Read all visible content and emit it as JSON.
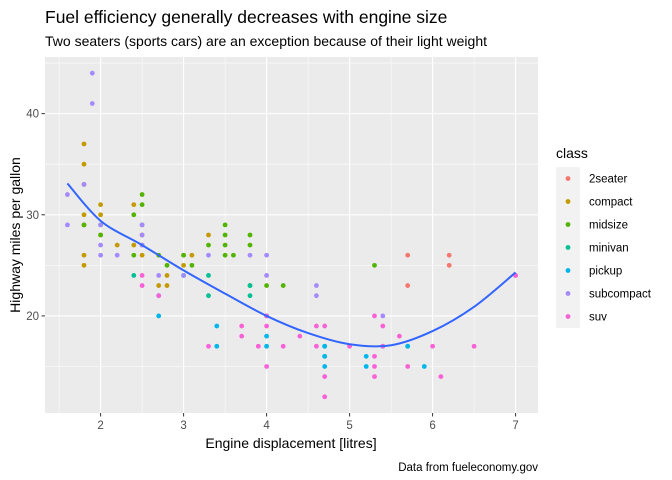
{
  "chart_data": {
    "type": "scatter",
    "title": "Fuel efficiency generally decreases with engine size",
    "subtitle": "Two seaters (sports cars) are an exception because of their light weight",
    "caption": "Data from fueleconomy.gov",
    "xlabel": "Engine displacement [litres]",
    "ylabel": "Highway miles per gallon",
    "xlim": [
      1.33,
      7.27
    ],
    "ylim": [
      10.4,
      45.6
    ],
    "xticks": [
      2,
      3,
      4,
      5,
      6,
      7
    ],
    "yticks": [
      20,
      30,
      40
    ],
    "grid": true,
    "legend": {
      "title": "class",
      "position": "right"
    },
    "series": [
      {
        "name": "2seater",
        "color": "#F8766D",
        "x": [
          5.7,
          5.7,
          6.2,
          6.2,
          7.0
        ],
        "y": [
          26,
          23,
          26,
          25,
          24
        ]
      },
      {
        "name": "compact",
        "color": "#C49A00",
        "x": [
          1.8,
          1.8,
          1.8,
          1.8,
          1.8,
          1.8,
          1.8,
          2.0,
          2.0,
          2.0,
          2.2,
          2.4,
          2.4,
          2.5,
          2.5,
          2.5,
          2.7,
          2.8,
          2.8,
          3.0,
          3.0,
          3.1,
          3.3
        ],
        "y": [
          29,
          26,
          25,
          30,
          33,
          35,
          37,
          31,
          30,
          28,
          27,
          27,
          31,
          28,
          26,
          27,
          23,
          23,
          24,
          26,
          25,
          26,
          28
        ]
      },
      {
        "name": "midsize",
        "color": "#53B400",
        "x": [
          1.8,
          2.0,
          2.0,
          2.4,
          2.4,
          2.5,
          2.5,
          2.5,
          2.7,
          2.8,
          3.0,
          3.1,
          3.3,
          3.5,
          3.5,
          3.5,
          3.5,
          3.6,
          3.8,
          3.8,
          3.8,
          4.0,
          4.2,
          5.3
        ],
        "y": [
          29,
          29,
          28,
          26,
          30,
          31,
          32,
          29,
          26,
          25,
          26,
          25,
          27,
          29,
          28,
          27,
          26,
          26,
          28,
          27,
          23,
          23,
          23,
          25
        ]
      },
      {
        "name": "minivan",
        "color": "#00C094",
        "x": [
          2.4,
          3.0,
          3.3,
          3.3,
          3.8,
          3.8,
          4.0,
          4.7,
          4.7,
          5.4,
          5.7
        ],
        "y": [
          24,
          24,
          24,
          22,
          22,
          23,
          20,
          17,
          16,
          17,
          17
        ]
      },
      {
        "name": "pickup",
        "color": "#00B6EB",
        "x": [
          2.7,
          2.7,
          3.4,
          3.4,
          4.0,
          4.0,
          4.7,
          4.7,
          4.7,
          5.2,
          5.2,
          5.7,
          5.9
        ],
        "y": [
          20,
          22,
          17,
          19,
          17,
          18,
          17,
          16,
          15,
          15,
          16,
          17,
          15
        ]
      },
      {
        "name": "subcompact",
        "color": "#A58AFF",
        "x": [
          1.6,
          1.6,
          1.8,
          1.9,
          1.9,
          2.0,
          2.0,
          2.0,
          2.2,
          2.5,
          2.5,
          2.5,
          2.7,
          3.0,
          3.3,
          3.8,
          4.0,
          4.0,
          4.6,
          4.6,
          5.4
        ],
        "y": [
          29,
          32,
          33,
          44,
          41,
          27,
          26,
          29,
          26,
          29,
          28,
          27,
          24,
          24,
          26,
          26,
          24,
          26,
          23,
          22,
          20
        ]
      },
      {
        "name": "suv",
        "color": "#FB61D7",
        "x": [
          2.5,
          2.5,
          2.7,
          3.3,
          3.7,
          3.7,
          3.9,
          4.0,
          4.0,
          4.0,
          4.2,
          4.4,
          4.6,
          4.6,
          4.7,
          4.7,
          4.7,
          5.0,
          5.3,
          5.3,
          5.3,
          5.3,
          5.4,
          5.4,
          5.6,
          5.7,
          6.0,
          6.1,
          6.5,
          7.0
        ],
        "y": [
          23,
          24,
          22,
          17,
          19,
          18,
          17,
          19,
          15,
          20,
          17,
          18,
          19,
          17,
          14,
          19,
          12,
          17,
          14,
          15,
          16,
          20,
          17,
          19,
          18,
          15,
          17,
          14,
          17,
          24
        ]
      }
    ],
    "smooth_line": {
      "color": "#3366FF",
      "x": [
        1.6,
        2.0,
        2.5,
        3.0,
        3.5,
        4.0,
        4.5,
        5.0,
        5.5,
        6.0,
        6.5,
        7.0
      ],
      "y": [
        33.1,
        29.4,
        27.0,
        24.5,
        22.2,
        20.0,
        18.3,
        17.2,
        17.1,
        18.5,
        20.9,
        24.3
      ]
    }
  }
}
